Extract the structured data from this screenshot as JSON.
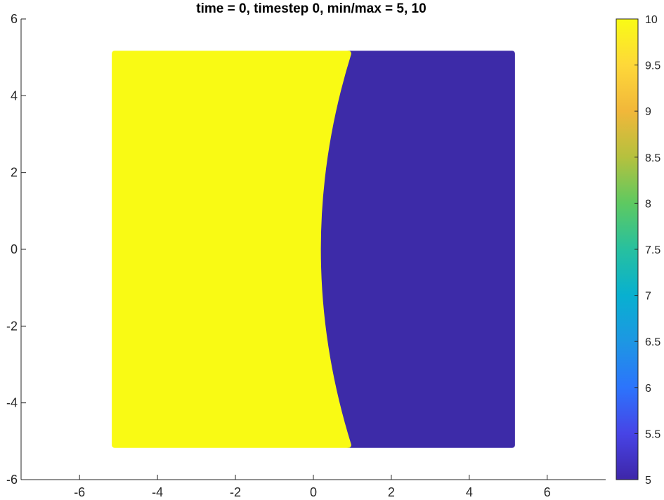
{
  "chart_data": [
    {
      "type": "heatmap",
      "title": "time = 0, timestep 0, min/max = 5, 10",
      "xlim": [
        -7.5,
        7.5
      ],
      "ylim": [
        -6,
        6
      ],
      "x_ticks": [
        -6,
        -4,
        -2,
        0,
        2,
        4,
        6
      ],
      "y_ticks": [
        -6,
        -4,
        -2,
        0,
        2,
        4,
        6
      ],
      "x_tick_labels": [
        "-6",
        "-4",
        "-2",
        "0",
        "2",
        "4",
        "6"
      ],
      "y_tick_labels": [
        "-6",
        "-4",
        "-2",
        "0",
        "2",
        "4",
        "6"
      ],
      "grid": false,
      "domain": {
        "x": [
          -5.1,
          5.1
        ],
        "y": [
          -5.1,
          5.1
        ]
      },
      "regions": [
        {
          "value": 10,
          "color": "#f9fa14",
          "description": "left region, x less than interface"
        },
        {
          "value": 5,
          "color": "#3d2ba8",
          "description": "right region, x greater than interface"
        }
      ],
      "interface": {
        "shape": "circular arc",
        "x_at_y0": 0.12,
        "x_at_y_top": 0.9,
        "x_at_y_bottom": 0.9,
        "y_top": 5.1,
        "y_bottom": -5.1
      },
      "colorbar": {
        "limits": [
          5,
          10
        ],
        "ticks": [
          5,
          5.5,
          6,
          6.5,
          7,
          7.5,
          8,
          8.5,
          9,
          9.5,
          10
        ],
        "tick_labels": [
          "5",
          "5.5",
          "6",
          "6.5",
          "7",
          "7.5",
          "8",
          "8.5",
          "9",
          "9.5",
          "10"
        ],
        "colormap": "parula",
        "colormap_stops": [
          "#3e26a8",
          "#4744e6",
          "#2c74fc",
          "#1d97e3",
          "#08b0d0",
          "#27c09f",
          "#5ec961",
          "#b5c13e",
          "#f1b73a",
          "#fed839",
          "#f9fb15"
        ]
      }
    }
  ]
}
